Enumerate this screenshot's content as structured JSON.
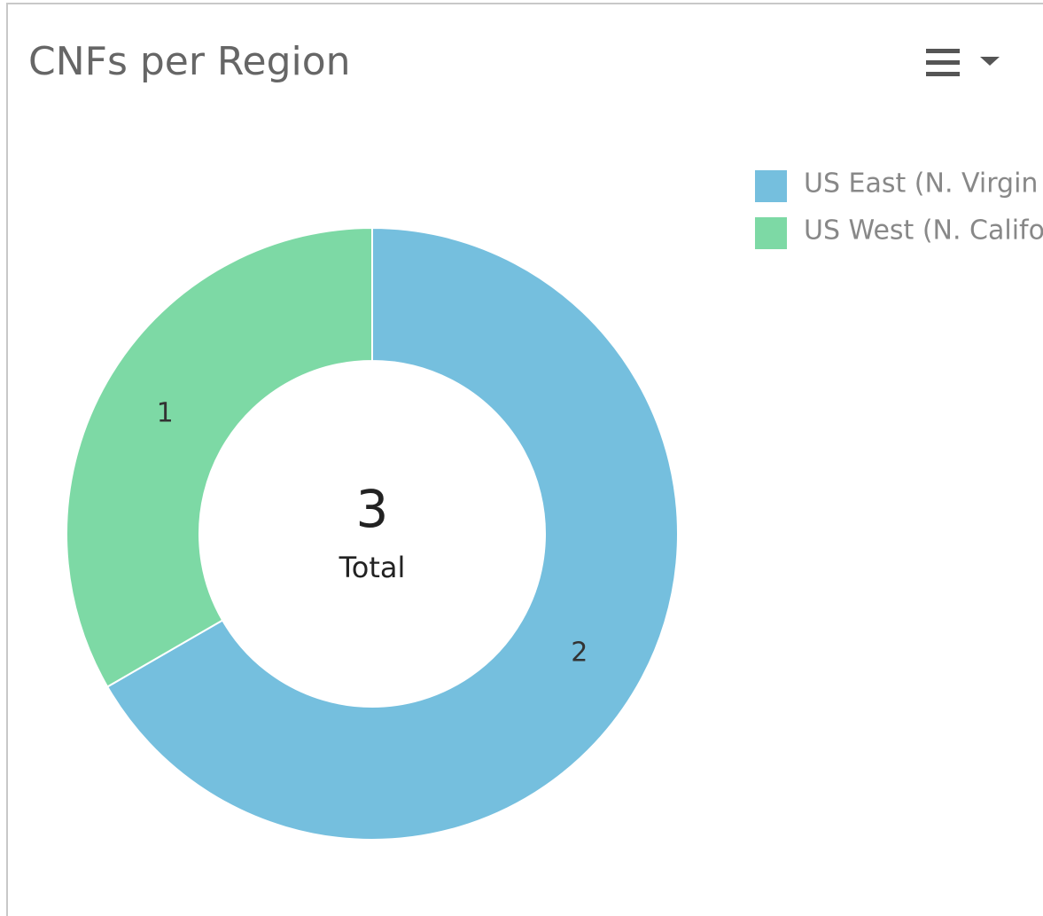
{
  "chart_data": {
    "type": "donut",
    "title": "CNFs per Region",
    "categories": [
      "US East (N. Virgin",
      "US West (N. Califo"
    ],
    "values": [
      2,
      1
    ],
    "colors": [
      "#75bfde",
      "#7dd9a5"
    ],
    "center_value": 3,
    "center_label": "Total",
    "legend": "top-right"
  }
}
